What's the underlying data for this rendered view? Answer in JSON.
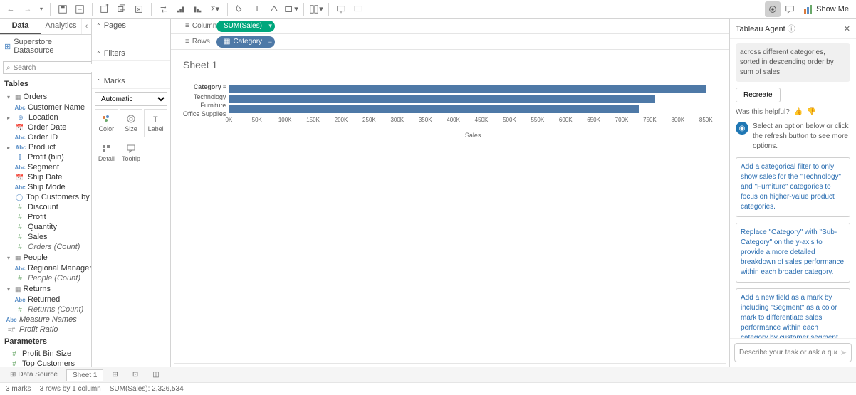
{
  "toolbar": {
    "showme": "Show Me"
  },
  "leftPanel": {
    "dataTab": "Data",
    "analyticsTab": "Analytics",
    "datasource": "Superstore Datasource",
    "searchPlaceholder": "Search",
    "tablesHdr": "Tables",
    "paramsHdr": "Parameters",
    "groups": {
      "orders": "Orders",
      "people": "People",
      "returns": "Returns"
    },
    "fields": {
      "customerName": "Customer Name",
      "location": "Location",
      "orderDate": "Order Date",
      "orderId": "Order ID",
      "product": "Product",
      "profitBin": "Profit (bin)",
      "segment": "Segment",
      "shipDate": "Ship Date",
      "shipMode": "Ship Mode",
      "topCustomers": "Top Customers by P...",
      "discount": "Discount",
      "profit": "Profit",
      "quantity": "Quantity",
      "sales": "Sales",
      "ordersCount": "Orders (Count)",
      "regionalManager": "Regional Manager",
      "peopleCount": "People (Count)",
      "returned": "Returned",
      "returnsCount": "Returns (Count)",
      "measureNames": "Measure Names",
      "profitRatio": "Profit Ratio",
      "profitBinSize": "Profit Bin Size",
      "topCustomersParam": "Top Customers"
    }
  },
  "midPanels": {
    "pages": "Pages",
    "filters": "Filters",
    "marks": "Marks",
    "markType": "Automatic",
    "color": "Color",
    "size": "Size",
    "label": "Label",
    "detail": "Detail",
    "tooltip": "Tooltip"
  },
  "shelves": {
    "columns": "Columns",
    "rows": "Rows",
    "sumSales": "SUM(Sales)",
    "category": "Category"
  },
  "viz": {
    "title": "Sheet 1",
    "yHeader": "Category",
    "xLabel": "Sales",
    "categories": [
      "Technology",
      "Furniture",
      "Office Supplies"
    ],
    "values": [
      850000,
      760000,
      730000
    ],
    "xmax": 870000,
    "xticks": [
      "0K",
      "50K",
      "100K",
      "150K",
      "200K",
      "250K",
      "300K",
      "350K",
      "400K",
      "450K",
      "500K",
      "550K",
      "600K",
      "650K",
      "700K",
      "750K",
      "800K",
      "850K"
    ],
    "barColor": "#4e79a7"
  },
  "agent": {
    "title": "Tableau Agent",
    "topMsg": "across different categories, sorted in descending order by sum of sales.",
    "recreate": "Recreate",
    "helpful": "Was this helpful?",
    "selectMsg": "Select an option below or click the refresh button to see more options.",
    "sugg1": "Add a categorical filter to only show sales for the \"Technology\" and \"Furniture\" categories to focus on higher-value product categories.",
    "sugg2": "Replace \"Category\" with \"Sub-Category\" on the y-axis to provide a more detailed breakdown of sales performance within each broader category.",
    "sugg3": "Add a new field as a mark by including \"Segment\" as a color mark to differentiate sales performance within each category by customer segment.",
    "inputPlaceholder": "Describe your task or ask a question..."
  },
  "bottom": {
    "dataSource": "Data Source",
    "sheet1": "Sheet 1"
  },
  "status": {
    "marks": "3 marks",
    "rows": "3 rows by 1 column",
    "sum": "SUM(Sales): 2,326,534"
  }
}
